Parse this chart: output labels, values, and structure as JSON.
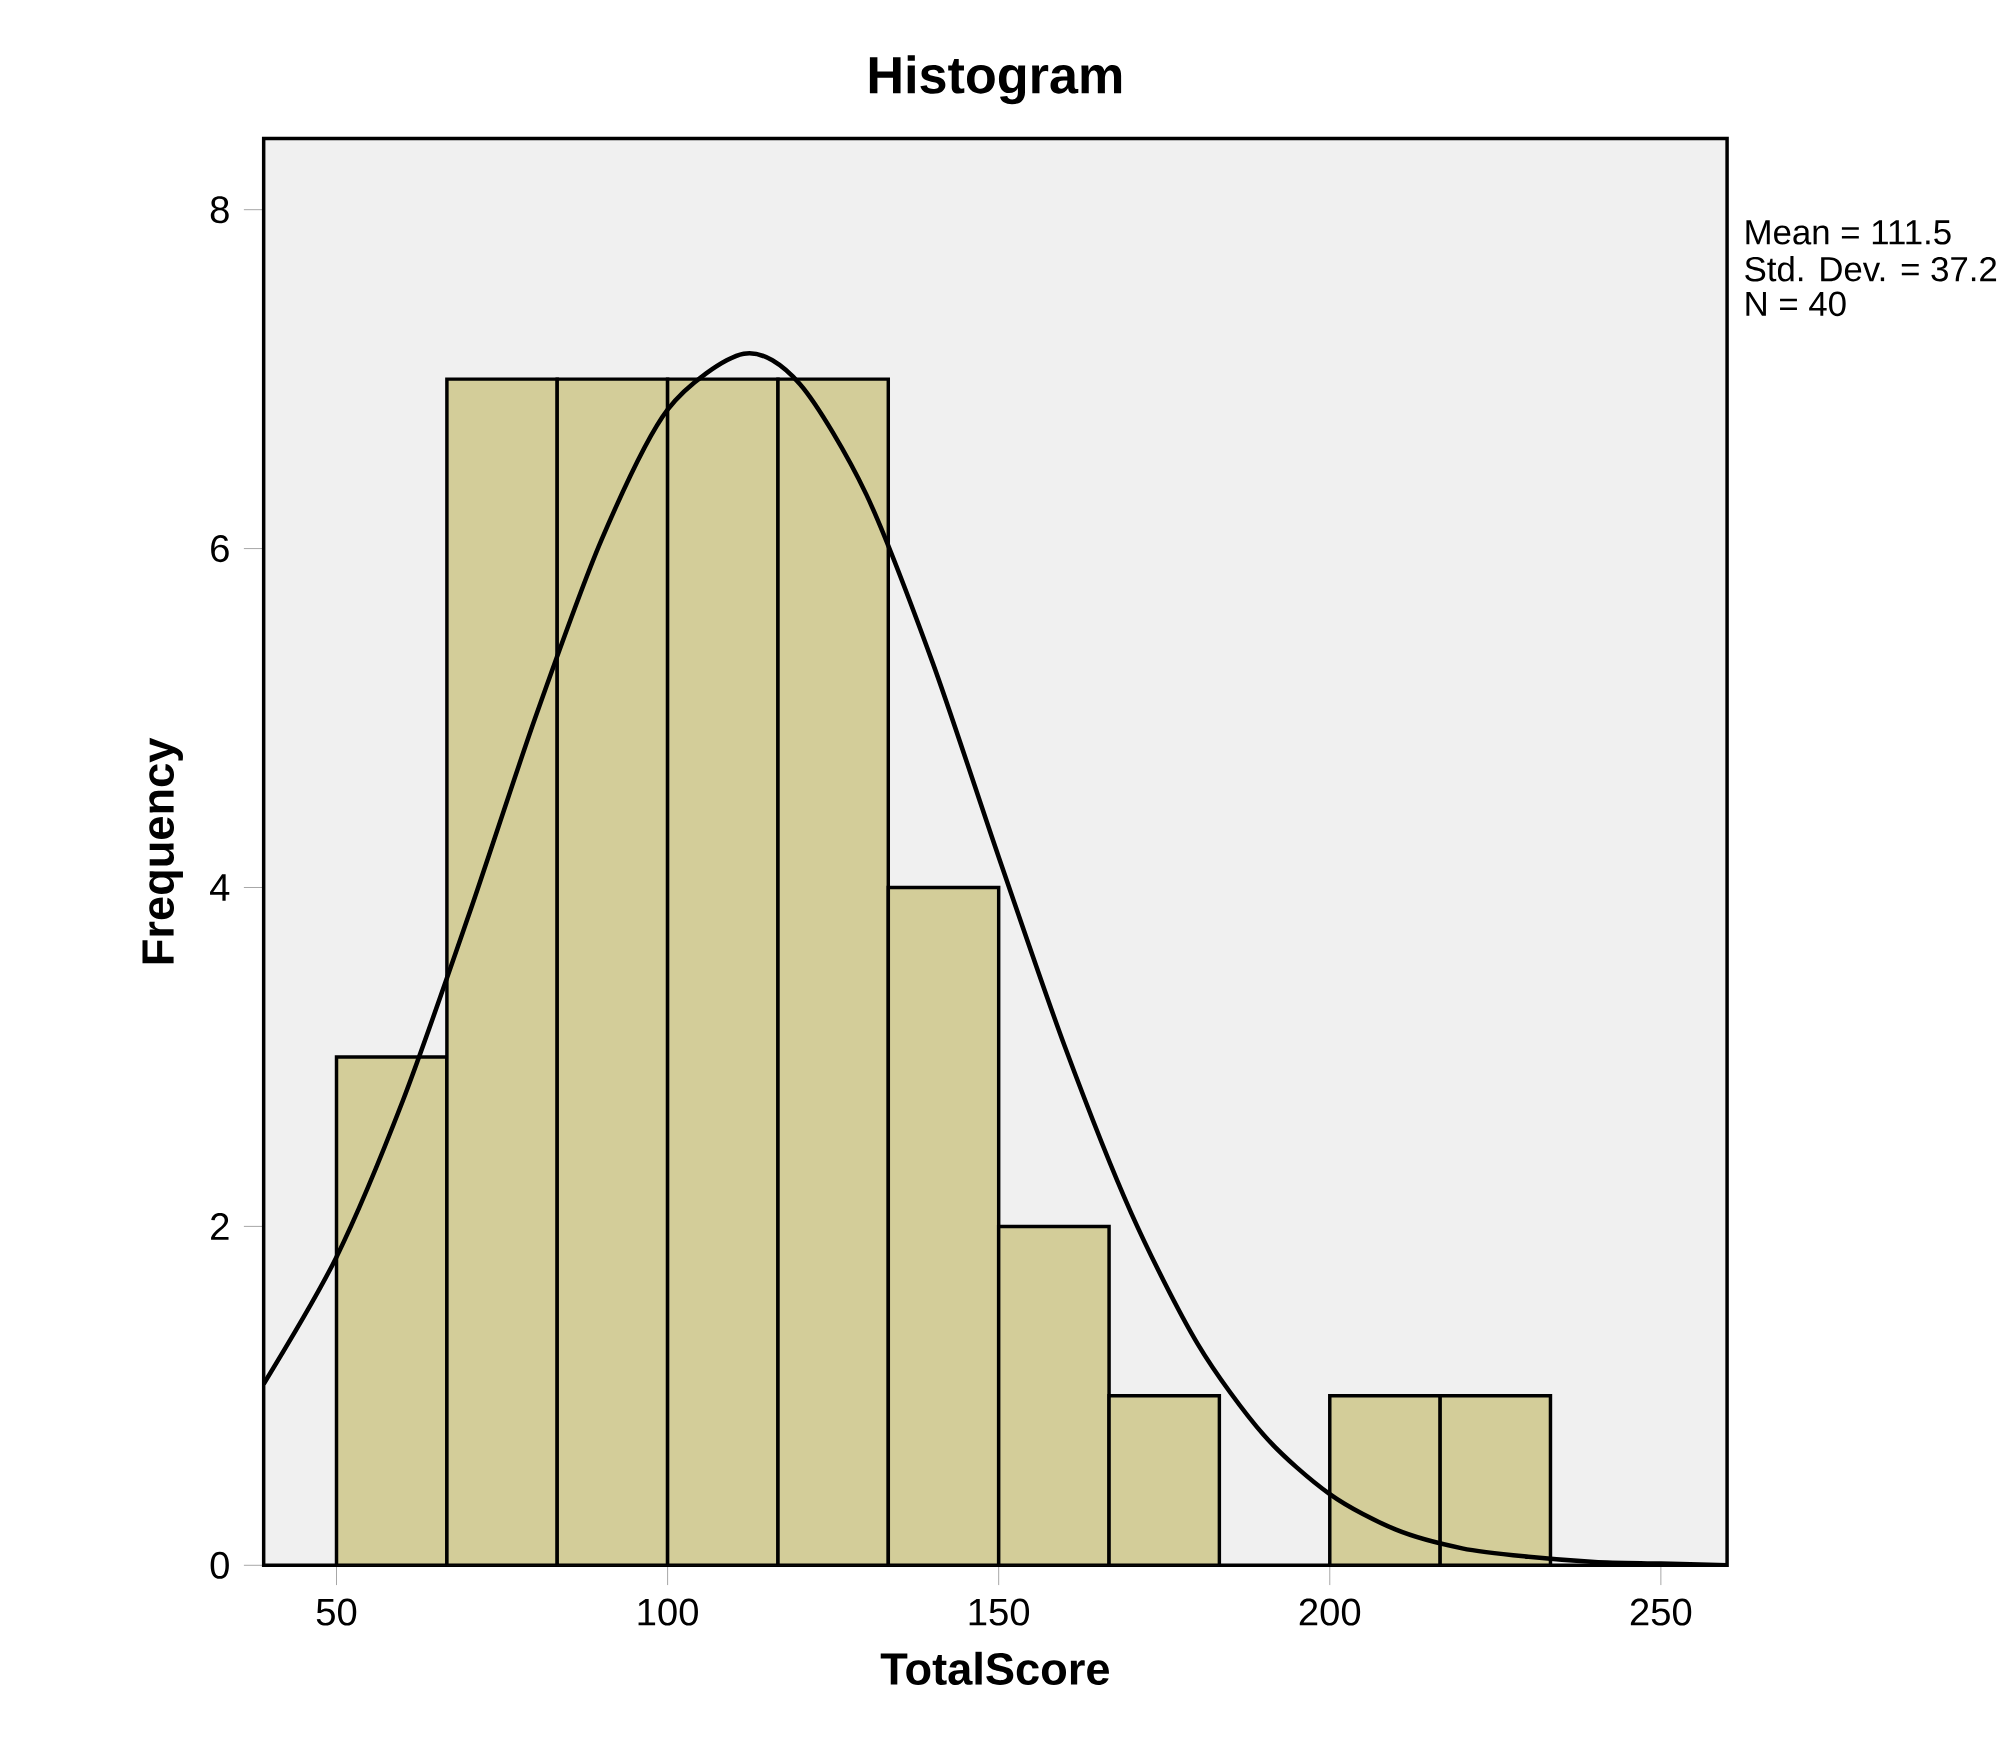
{
  "chart_data": {
    "type": "histogram",
    "title": "Histogram",
    "xlabel": "TotalScore",
    "ylabel": "Frequency",
    "bins": [
      50,
      66.67,
      83.33,
      100,
      116.67,
      133.33,
      150,
      166.67,
      183.33,
      200,
      216.67,
      233.33
    ],
    "values": [
      3,
      7,
      7,
      7,
      7,
      4,
      2,
      1,
      0,
      1,
      1
    ],
    "color": "#d3cd99",
    "series": [
      {
        "type": "line",
        "color": "#000000",
        "x": [
          39,
          50,
          60,
          70,
          80,
          90,
          100,
          111.5,
          120,
          130,
          140,
          150,
          160,
          170,
          180,
          190,
          200,
          210,
          220,
          230,
          240,
          250,
          260
        ],
        "values": [
          1.07,
          1.82,
          2.74,
          3.84,
          5.0,
          6.05,
          6.82,
          7.15,
          6.97,
          6.32,
          5.33,
          4.18,
          3.06,
          2.08,
          1.31,
          0.77,
          0.42,
          0.21,
          0.1,
          0.05,
          0.02,
          0.01,
          0.0
        ]
      }
    ],
    "xlim": [
      39,
      260
    ],
    "ylim": [
      0,
      8.42
    ],
    "xticks": [
      50,
      100,
      150,
      200,
      250
    ],
    "yticks": [
      0,
      2,
      4,
      6,
      8
    ],
    "annotations": [
      "Mean = 111.5",
      "Std. Dev. = 37.2",
      "N = 40"
    ]
  }
}
